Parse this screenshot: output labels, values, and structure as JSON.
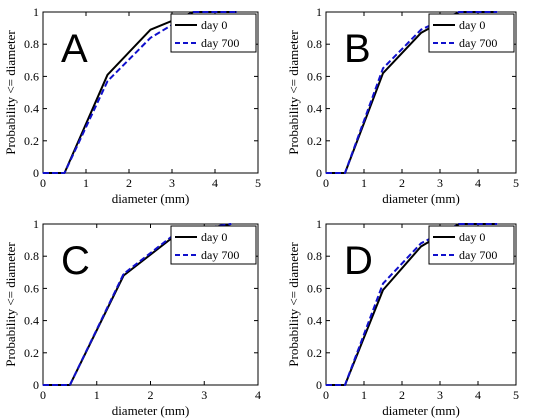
{
  "figure": {
    "colors": {
      "day0": "#000000",
      "day700": "#1010cc"
    }
  },
  "chart_data": [
    {
      "type": "line",
      "panel_label": "A",
      "xlabel": "diameter (mm)",
      "ylabel": "Probability <= diameter",
      "xlim": [
        0,
        5
      ],
      "ylim": [
        0,
        1
      ],
      "xticks": [
        "0",
        "1",
        "2",
        "3",
        "4",
        "5"
      ],
      "yticks": [
        "0",
        "0.2",
        "0.4",
        "0.6",
        "0.8",
        "1"
      ],
      "legend_position": "top-right",
      "series": [
        {
          "name": "day 0",
          "style": "solid",
          "x": [
            0,
            0.5,
            1.5,
            2.5,
            3.5,
            4.5
          ],
          "y": [
            0,
            0,
            0.61,
            0.89,
            1.0,
            1.0
          ]
        },
        {
          "name": "day 700",
          "style": "dashed",
          "x": [
            0,
            0.5,
            1.5,
            2.5,
            3.5,
            4.5
          ],
          "y": [
            0,
            0,
            0.57,
            0.84,
            1.0,
            1.0
          ]
        }
      ]
    },
    {
      "type": "line",
      "panel_label": "B",
      "xlabel": "diameter (mm)",
      "ylabel": "Probability <= diameter",
      "xlim": [
        0,
        5
      ],
      "ylim": [
        0,
        1
      ],
      "xticks": [
        "0",
        "1",
        "2",
        "3",
        "4",
        "5"
      ],
      "yticks": [
        "0",
        "0.2",
        "0.4",
        "0.6",
        "0.8",
        "1"
      ],
      "legend_position": "top-right",
      "series": [
        {
          "name": "day 0",
          "style": "solid",
          "x": [
            0,
            0.5,
            1.5,
            2.5,
            3.5,
            4.5
          ],
          "y": [
            0,
            0,
            0.62,
            0.87,
            1.0,
            1.0
          ]
        },
        {
          "name": "day 700",
          "style": "dashed",
          "x": [
            0,
            0.5,
            1.5,
            2.5,
            3.5,
            4.5
          ],
          "y": [
            0,
            0,
            0.65,
            0.89,
            1.0,
            1.0
          ]
        }
      ]
    },
    {
      "type": "line",
      "panel_label": "C",
      "xlabel": "diameter (mm)",
      "ylabel": "Probability <= diameter",
      "xlim": [
        0,
        4
      ],
      "ylim": [
        0,
        1
      ],
      "xticks": [
        "0",
        "1",
        "2",
        "3",
        "4"
      ],
      "yticks": [
        "0",
        "0.2",
        "0.4",
        "0.6",
        "0.8",
        "1"
      ],
      "legend_position": "top-right",
      "series": [
        {
          "name": "day 0",
          "style": "solid",
          "x": [
            0,
            0.5,
            1.5,
            2.5,
            3.5
          ],
          "y": [
            0,
            0,
            0.68,
            0.94,
            1.0
          ]
        },
        {
          "name": "day 700",
          "style": "dashed",
          "x": [
            0,
            0.5,
            1.5,
            2.5,
            3.5
          ],
          "y": [
            0,
            0,
            0.69,
            0.95,
            1.0
          ]
        }
      ]
    },
    {
      "type": "line",
      "panel_label": "D",
      "xlabel": "diameter (mm)",
      "ylabel": "Probability <= diameter",
      "xlim": [
        0,
        5
      ],
      "ylim": [
        0,
        1
      ],
      "xticks": [
        "0",
        "1",
        "2",
        "3",
        "4",
        "5"
      ],
      "yticks": [
        "0",
        "0.2",
        "0.4",
        "0.6",
        "0.8",
        "1"
      ],
      "legend_position": "top-right",
      "series": [
        {
          "name": "day 0",
          "style": "solid",
          "x": [
            0,
            0.5,
            1.5,
            2.5,
            3.5,
            4.5
          ],
          "y": [
            0,
            0,
            0.59,
            0.86,
            1.0,
            1.0
          ]
        },
        {
          "name": "day 700",
          "style": "dashed",
          "x": [
            0,
            0.5,
            1.5,
            2.5,
            3.5,
            4.5
          ],
          "y": [
            0,
            0,
            0.63,
            0.88,
            1.0,
            1.0
          ]
        }
      ]
    }
  ]
}
